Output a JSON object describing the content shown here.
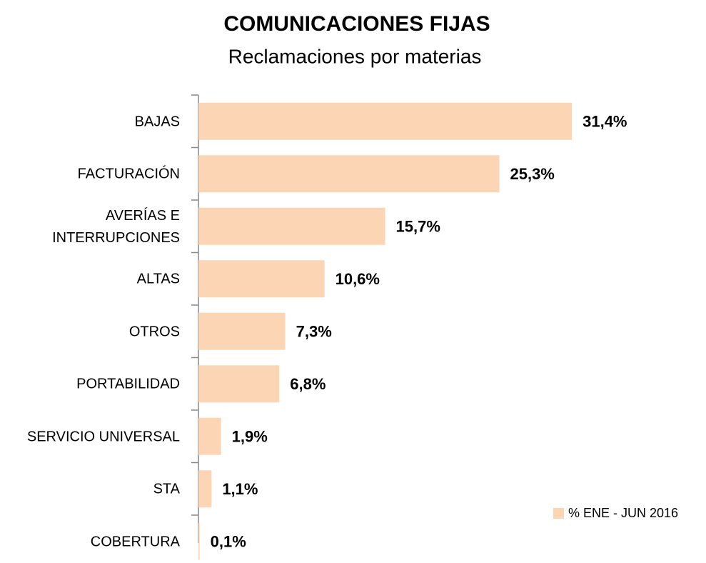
{
  "chart_data": {
    "type": "bar",
    "orientation": "horizontal",
    "title": "COMUNICACIONES FIJAS",
    "subtitle": "Reclamaciones por materias",
    "categories": [
      "BAJAS",
      "FACTURACIÓN",
      "AVERÍAS E INTERRUPCIONES",
      "ALTAS",
      "OTROS",
      "PORTABILIDAD",
      "SERVICIO UNIVERSAL",
      "STA",
      "COBERTURA"
    ],
    "series": [
      {
        "name": "% ENE - JUN 2016",
        "color": "#fcd5b5",
        "values": [
          31.4,
          25.3,
          15.7,
          10.6,
          7.3,
          6.8,
          1.9,
          1.1,
          0.1
        ],
        "value_labels": [
          "31,4%",
          "25,3%",
          "15,7%",
          "10,6%",
          "7,3%",
          "6,8%",
          "1,9%",
          "1,1%",
          "0,1%"
        ]
      }
    ],
    "legend": "bottom-right"
  }
}
